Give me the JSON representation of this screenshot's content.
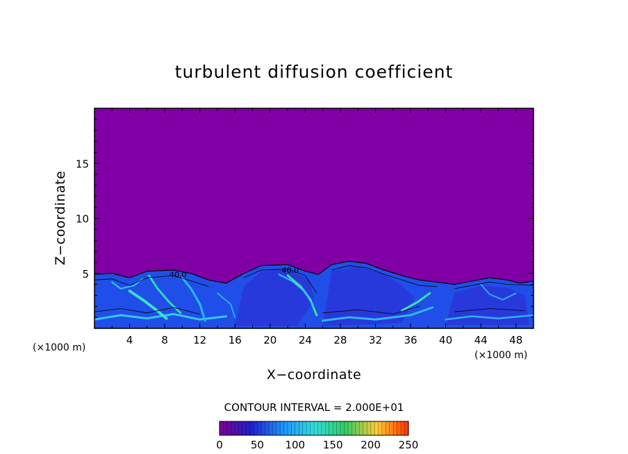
{
  "chart_data": {
    "type": "heatmap",
    "title": "turbulent diffusion coefficient",
    "xlabel": "X−coordinate",
    "ylabel": "Z−coordinate",
    "x_unit_left": "(×1000 m)",
    "x_unit_right": "(×1000 m)",
    "xlim": [
      0,
      50
    ],
    "ylim": [
      0,
      20
    ],
    "x_ticks": [
      4,
      8,
      12,
      16,
      20,
      24,
      28,
      32,
      36,
      40,
      44,
      48
    ],
    "y_ticks": [
      5,
      10,
      15
    ],
    "contour_interval_text": "CONTOUR INTERVAL = 2.000E+01",
    "colorbar": {
      "min": 0,
      "max": 250,
      "ticks": [
        0,
        50,
        100,
        150,
        200,
        250
      ],
      "colors": [
        "#800099",
        "#2020c8",
        "#1e90ff",
        "#33dddd",
        "#33cc66",
        "#ffcc33",
        "#ff3300"
      ]
    },
    "background_value": 0,
    "background_color": "#8000a5",
    "contour_labels": [
      {
        "text": "40.0",
        "x": 9.5,
        "z": 4.9
      },
      {
        "text": "40.0",
        "x": 22.3,
        "z": 5.3
      }
    ],
    "boundary_top": [
      [
        0,
        4.9
      ],
      [
        2,
        5.0
      ],
      [
        4,
        4.6
      ],
      [
        6,
        5.2
      ],
      [
        9,
        5.3
      ],
      [
        11,
        5.0
      ],
      [
        13,
        4.4
      ],
      [
        15,
        4.1
      ],
      [
        17,
        5.0
      ],
      [
        19,
        5.7
      ],
      [
        22,
        5.8
      ],
      [
        24,
        5.2
      ],
      [
        25.5,
        4.9
      ],
      [
        27,
        5.8
      ],
      [
        29,
        6.1
      ],
      [
        31,
        5.9
      ],
      [
        33,
        5.3
      ],
      [
        35,
        4.8
      ],
      [
        37,
        4.4
      ],
      [
        39,
        4.2
      ],
      [
        41,
        4.0
      ],
      [
        43,
        4.3
      ],
      [
        45,
        4.6
      ],
      [
        47,
        4.4
      ],
      [
        48.5,
        4.1
      ],
      [
        50,
        4.3
      ]
    ]
  }
}
